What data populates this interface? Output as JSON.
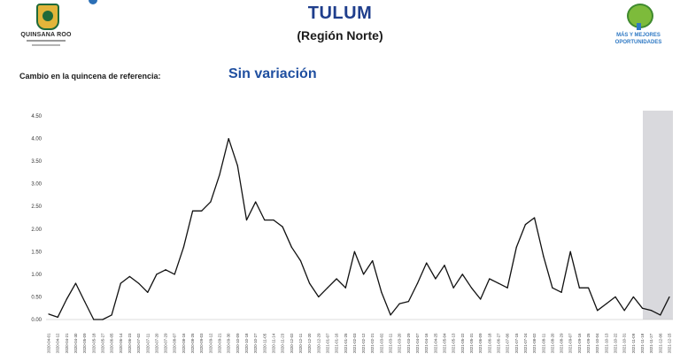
{
  "header": {
    "title": "TULUM",
    "subtitle": "(Región Norte)",
    "logo_left": "QUINSANA ROO",
    "logo_right_line1": "MÁS Y MEJORES",
    "logo_right_line2": "OPORTUNIDADES"
  },
  "status": {
    "label": "Cambio en la quincena de referencia:",
    "value": "Sin variación"
  },
  "colors": {
    "title": "#1f3e8c",
    "value": "#1f4fa0",
    "line": "#111111",
    "shade": "#d9d9dd"
  },
  "chart_data": {
    "type": "line",
    "title": "",
    "xlabel": "",
    "ylabel": "",
    "ylim": [
      0,
      4.5
    ],
    "yticks": [
      "4.50",
      "4.00",
      "3.50",
      "3.00",
      "2.50",
      "2.00",
      "1.50",
      "1.00",
      "0.50",
      "0.00"
    ],
    "grid": false,
    "shaded_region": "last weeks (2021-12-02 to 2021-12-15)",
    "categories": [
      "2020-04-01",
      "2020-04-12",
      "2020-04-21",
      "2020-04-30",
      "2020-05-09",
      "2020-05-18",
      "2020-05-27",
      "2020-06-05",
      "2020-06-14",
      "2020-06-23",
      "2020-07-02",
      "2020-07-11",
      "2020-07-20",
      "2020-07-29",
      "2020-08-07",
      "2020-08-16",
      "2020-08-25",
      "2020-09-03",
      "2020-09-12",
      "2020-09-21",
      "2020-09-30",
      "2020-10-09",
      "2020-10-18",
      "2020-10-27",
      "2020-11-05",
      "2020-11-14",
      "2020-11-23",
      "2020-12-02",
      "2020-12-11",
      "2020-12-20",
      "2020-12-29",
      "2021-01-07",
      "2021-01-16",
      "2021-01-25",
      "2021-02-03",
      "2021-02-12",
      "2021-02-21",
      "2021-03-02",
      "2021-03-11",
      "2021-03-20",
      "2021-03-29",
      "2021-04-07",
      "2021-04-16",
      "2021-04-25",
      "2021-05-04",
      "2021-05-13",
      "2021-05-22",
      "2021-05-31",
      "2021-06-09",
      "2021-06-18",
      "2021-06-27",
      "2021-07-06",
      "2021-07-15",
      "2021-07-24",
      "2021-08-02",
      "2021-08-11",
      "2021-08-20",
      "2021-08-29",
      "2021-09-07",
      "2021-09-16",
      "2021-09-25",
      "2021-10-04",
      "2021-10-13",
      "2021-10-22",
      "2021-10-31",
      "2021-11-09",
      "2021-11-18",
      "2021-11-27",
      "2021-12-06",
      "2021-12-15"
    ],
    "series": [
      {
        "values": [
          0.12,
          0.05,
          0.45,
          0.8,
          0.4,
          0.0,
          0.0,
          0.1,
          0.8,
          0.95,
          0.8,
          0.6,
          1.0,
          1.1,
          1.0,
          1.6,
          2.4,
          2.4,
          2.6,
          3.2,
          4.0,
          3.4,
          2.2,
          2.6,
          2.2,
          2.2,
          2.05,
          1.6,
          1.3,
          0.8,
          0.5,
          0.7,
          0.9,
          0.7,
          1.5,
          1.0,
          1.3,
          0.6,
          0.1,
          0.35,
          0.4,
          0.8,
          1.25,
          0.9,
          1.2,
          0.7,
          1.0,
          0.7,
          0.45,
          0.9,
          0.8,
          0.7,
          1.6,
          2.1,
          2.25,
          1.4,
          0.7,
          0.6,
          1.5,
          0.7,
          0.7,
          0.2,
          0.35,
          0.5,
          0.2,
          0.5,
          0.25,
          0.2,
          0.1,
          0.5
        ]
      }
    ]
  }
}
